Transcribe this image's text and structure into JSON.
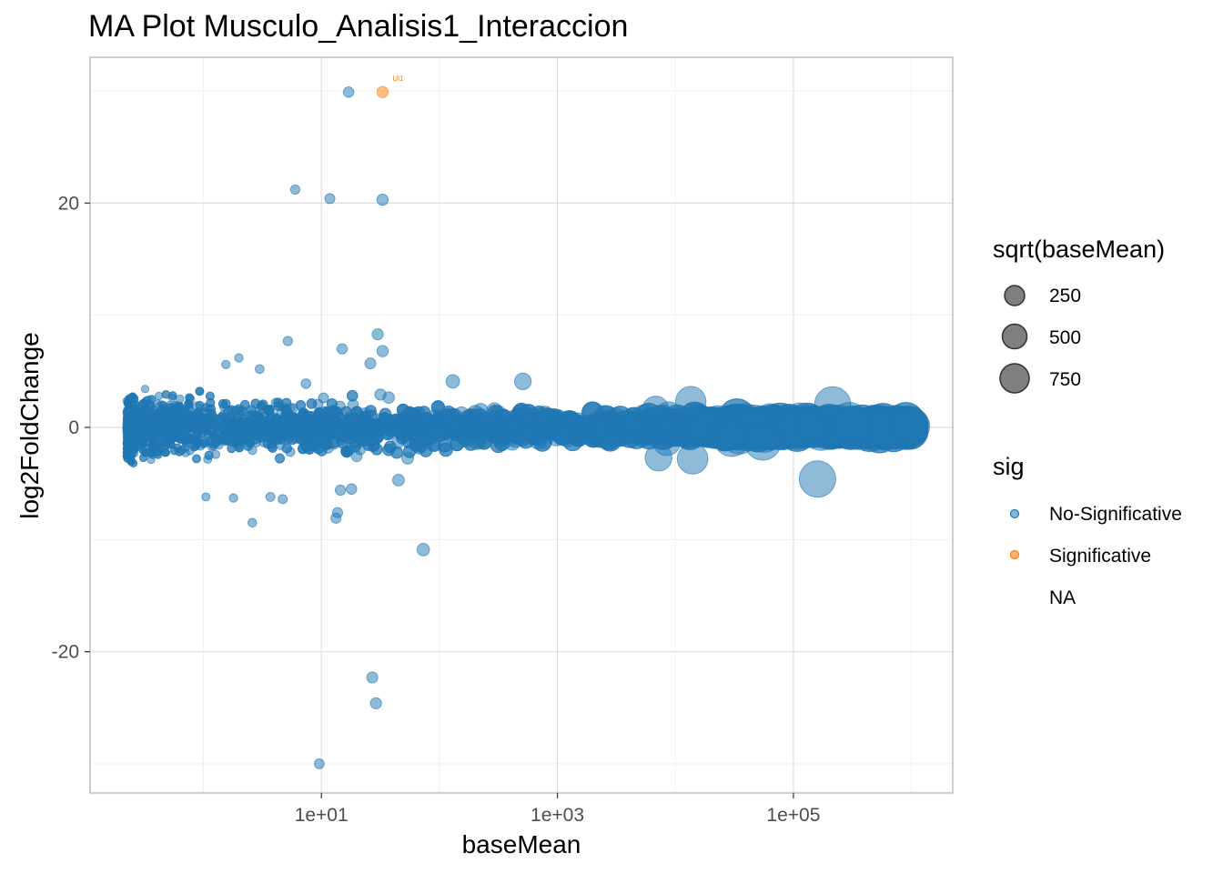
{
  "chart_data": {
    "type": "scatter",
    "title": "MA Plot Musculo_Analisis1_Interaccion",
    "xlabel": "baseMean",
    "ylabel": "log2FoldChange",
    "xscale": "log10",
    "xlim_log10": [
      -0.96,
      6.35
    ],
    "ylim": [
      -32.6,
      33.0
    ],
    "x_ticks": [
      {
        "log10": 1,
        "label": "1e+01"
      },
      {
        "log10": 3,
        "label": "1e+03"
      },
      {
        "log10": 5,
        "label": "1e+05"
      }
    ],
    "y_ticks": [
      {
        "value": -20,
        "label": "-20"
      },
      {
        "value": 0,
        "label": "0"
      },
      {
        "value": 20,
        "label": "20"
      }
    ],
    "colors": {
      "no_significative": "#1f77b4",
      "significative": "#ff7f0e",
      "size_legend_fill": "#7f7f7f"
    },
    "legend_size": {
      "title": "sqrt(baseMean)",
      "items": [
        {
          "label": "250",
          "value": 250
        },
        {
          "label": "500",
          "value": 500
        },
        {
          "label": "750",
          "value": 750
        }
      ]
    },
    "legend_sig": {
      "title": "sig",
      "items": [
        {
          "label": "No-Significative",
          "color": "#1f77b4"
        },
        {
          "label": "Significative",
          "color": "#ff7f0e"
        },
        {
          "label": "NA",
          "color": ""
        }
      ]
    },
    "annotations": [
      {
        "text": "Ul1",
        "x": 33.0,
        "y": 29.9
      }
    ],
    "significant_points": [
      {
        "x": 33.0,
        "y": 29.9
      }
    ],
    "outlier_points": [
      {
        "x": 17.0,
        "y": 29.9
      },
      {
        "x": 6.0,
        "y": 21.2
      },
      {
        "x": 11.8,
        "y": 20.4
      },
      {
        "x": 33.0,
        "y": 20.3
      },
      {
        "x": 30.0,
        "y": 8.3
      },
      {
        "x": 5.2,
        "y": 7.7
      },
      {
        "x": 15.0,
        "y": 7.0
      },
      {
        "x": 33.0,
        "y": 6.8
      },
      {
        "x": 26.0,
        "y": 5.7
      },
      {
        "x": 7.4,
        "y": 3.9
      },
      {
        "x": 130.0,
        "y": 4.1
      },
      {
        "x": 510.0,
        "y": 4.1
      },
      {
        "x": 2.0,
        "y": 6.2
      },
      {
        "x": 1.55,
        "y": 5.6
      },
      {
        "x": 3.0,
        "y": 5.2
      },
      {
        "x": 2.6,
        "y": -8.5
      },
      {
        "x": 13.7,
        "y": -7.6
      },
      {
        "x": 13.3,
        "y": -8.1
      },
      {
        "x": 73.0,
        "y": -10.9
      },
      {
        "x": 27.0,
        "y": -22.3
      },
      {
        "x": 29.0,
        "y": -24.6
      },
      {
        "x": 9.6,
        "y": -30.0
      },
      {
        "x": 14.5,
        "y": -5.6
      },
      {
        "x": 18.0,
        "y": -5.5
      },
      {
        "x": 45.0,
        "y": -4.7
      },
      {
        "x": 0.58,
        "y": 1.7
      },
      {
        "x": 0.55,
        "y": 0.3
      },
      {
        "x": 0.42,
        "y": 2.8
      },
      {
        "x": 3.7,
        "y": -6.2
      },
      {
        "x": 4.7,
        "y": -6.4
      },
      {
        "x": 1.8,
        "y": -6.3
      },
      {
        "x": 1.05,
        "y": -6.2
      }
    ],
    "large_points": [
      {
        "x": 4500,
        "y": 0.7
      },
      {
        "x": 6800,
        "y": 1.6
      },
      {
        "x": 7200,
        "y": -2.7
      },
      {
        "x": 13500,
        "y": 2.3
      },
      {
        "x": 14000,
        "y": -2.8
      },
      {
        "x": 30000,
        "y": -1.0
      },
      {
        "x": 55000,
        "y": -1.3
      },
      {
        "x": 160000,
        "y": -4.6
      },
      {
        "x": 215000,
        "y": 2.0
      },
      {
        "x": 320000,
        "y": 0.3
      },
      {
        "x": 600000,
        "y": -0.2
      },
      {
        "x": 950000,
        "y": 0.3
      },
      {
        "x": 1000000,
        "y": 0.1
      }
    ],
    "notes": "Dense cloud of several thousand non-significant genes centered near log2FoldChange 0, spreading roughly between -5 and +5 at low baseMean and narrowing to about +/-1 at high baseMean; point size grows with sqrt(baseMean)."
  }
}
